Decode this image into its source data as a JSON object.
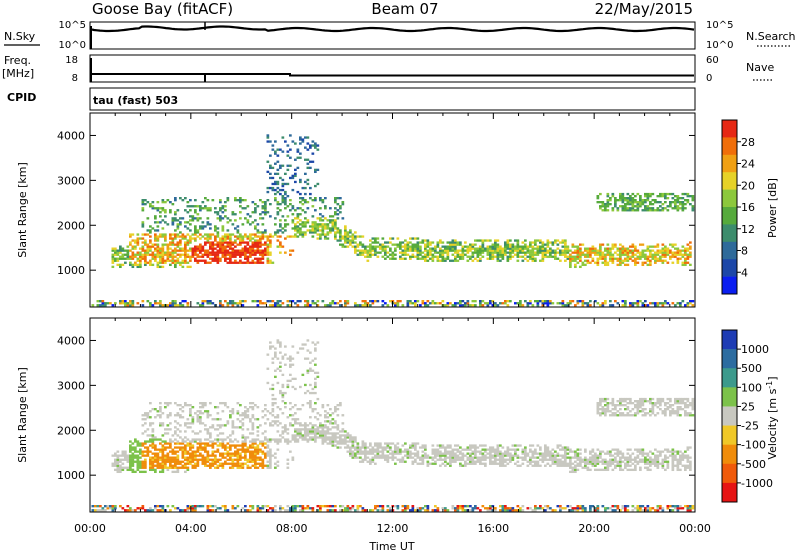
{
  "header": {
    "station": "Goose Bay (fitACF)",
    "beam": "Beam 07",
    "date": "22/May/2015"
  },
  "top_panels": {
    "nsky_label": "N.Sky",
    "nsky_ticks": [
      "10^5",
      "10^0"
    ],
    "nsearch_label": "N.Search",
    "nsearch_ticks": [
      "10^5",
      "10^0"
    ],
    "freq_label_1": "Freq.",
    "freq_label_2": "[MHz]",
    "freq_ticks": [
      "18",
      "8"
    ],
    "nave_label": "Nave",
    "nave_ticks": [
      "60",
      "0"
    ],
    "cpid_label": "CPID",
    "cpid_value": "tau (fast) 503"
  },
  "chart_data": [
    {
      "type": "heatmap",
      "name": "power",
      "ylabel": "Slant Range [km]",
      "xlabel": "Time UT",
      "x_range_hours": [
        0,
        24
      ],
      "ylim_km": [
        180,
        4500
      ],
      "y_ticks": [
        "1000",
        "2000",
        "3000",
        "4000"
      ],
      "x_ticks": [
        "00:00",
        "04:00",
        "08:00",
        "12:00",
        "16:00",
        "20:00",
        "00:00"
      ],
      "colorbar": {
        "label": "Power [dB]",
        "ticks": [
          "4",
          "8",
          "12",
          "16",
          "20",
          "24",
          "28"
        ],
        "colors": [
          "#0a1ef0",
          "#1c47a8",
          "#2e6a9a",
          "#3c8c6c",
          "#56aa3c",
          "#8cc83c",
          "#e6d228",
          "#f0a014",
          "#f06e0a",
          "#e62814"
        ]
      }
    },
    {
      "type": "heatmap",
      "name": "velocity",
      "ylabel": "Slant Range [km]",
      "xlabel": "Time UT",
      "x_range_hours": [
        0,
        24
      ],
      "ylim_km": [
        180,
        4500
      ],
      "y_ticks": [
        "1000",
        "2000",
        "3000",
        "4000"
      ],
      "x_ticks": [
        "00:00",
        "04:00",
        "08:00",
        "12:00",
        "16:00",
        "20:00",
        "00:00"
      ],
      "colorbar": {
        "label": "Velocity [m s^-1]",
        "ticks": [
          "1000",
          "500",
          "100",
          "25",
          "-25",
          "-100",
          "-500",
          "-1000"
        ],
        "colors": [
          "#1e3cb4",
          "#2c6ca0",
          "#3c9a8c",
          "#7cc24a",
          "#c8c8c0",
          "#f0c828",
          "#f08c0a",
          "#f05a0a",
          "#e61414"
        ]
      }
    }
  ]
}
